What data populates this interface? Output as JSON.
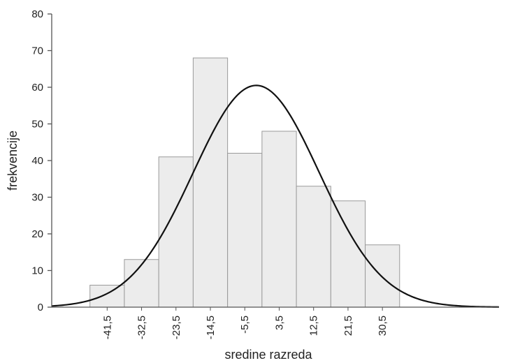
{
  "chart_data": {
    "type": "bar",
    "title": "",
    "xlabel": "sredine razreda",
    "ylabel": "frekvencije",
    "categories": [
      "-41,5",
      "-32,5",
      "-23,5",
      "-14,5",
      "-5,5",
      "3,5",
      "12,5",
      "21,5",
      "30,5"
    ],
    "class_midpoints": [
      -41.5,
      -32.5,
      -23.5,
      -14.5,
      -5.5,
      3.5,
      12.5,
      21.5,
      30.5
    ],
    "values": [
      6,
      13,
      41,
      68,
      42,
      48,
      33,
      29,
      17
    ],
    "yticks": [
      "0",
      "10",
      "20",
      "30",
      "40",
      "50",
      "60",
      "70",
      "80"
    ],
    "ylim": [
      0,
      80
    ],
    "xlim": [
      -56,
      61
    ],
    "bar_width": 9,
    "grid": false,
    "overlay": {
      "type": "normal-curve",
      "mean": -2.5,
      "sd": 16.5,
      "peak": 60.5
    },
    "colors": {
      "bar_fill": "#ececec",
      "bar_stroke": "#9a9a9a",
      "curve": "#111111",
      "axis": "#555555"
    }
  }
}
